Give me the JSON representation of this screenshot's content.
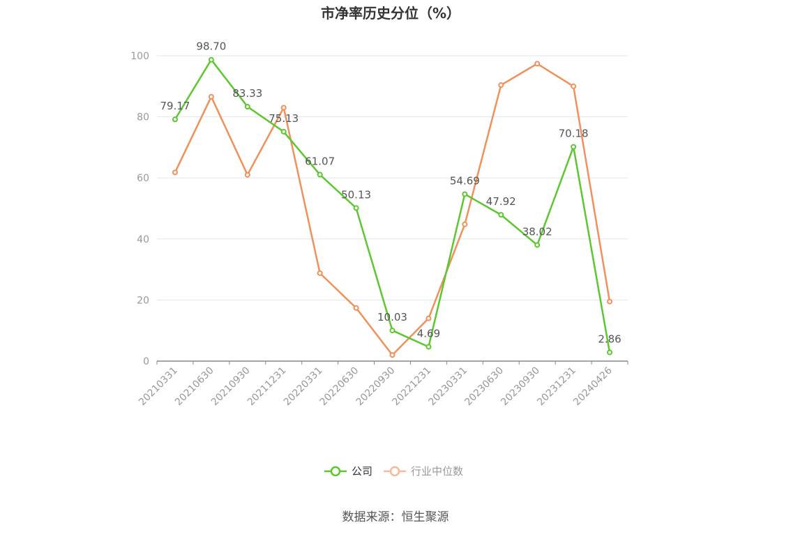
{
  "chart_data": {
    "type": "line",
    "title": "市净率历史分位（%）",
    "categories": [
      "20210331",
      "20210630",
      "20210930",
      "20211231",
      "20220331",
      "20220630",
      "20220930",
      "20221231",
      "20230331",
      "20230630",
      "20230930",
      "20231231",
      "20240426"
    ],
    "ylim": [
      0,
      100
    ],
    "yticks": [
      "0",
      "20",
      "40",
      "60",
      "80",
      "100"
    ],
    "grid": true,
    "legend_position": "bottom-center",
    "series": [
      {
        "name": "公司",
        "color": "#5cc72e",
        "show_labels": true,
        "values": [
          79.17,
          98.7,
          83.33,
          75.13,
          61.07,
          50.13,
          10.03,
          4.69,
          54.69,
          47.92,
          38.02,
          70.18,
          2.86
        ],
        "labels": [
          "79.17",
          "98.70",
          "83.33",
          "75.13",
          "61.07",
          "50.13",
          "10.03",
          "4.69",
          "54.69",
          "47.92",
          "38.02",
          "70.18",
          "2.86"
        ]
      },
      {
        "name": "行业中位数",
        "color": "#f0905a",
        "show_labels": false,
        "values": [
          61.8,
          86.6,
          61.0,
          83.0,
          28.8,
          17.4,
          2.0,
          14.0,
          44.8,
          90.4,
          97.4,
          90.0,
          19.5
        ]
      }
    ]
  },
  "legend": {
    "items": [
      {
        "label": "公司",
        "color": "#5cc72e",
        "text_color": "#333333"
      },
      {
        "label": "行业中位数",
        "color": "#f8b89a",
        "text_color": "#999999"
      }
    ]
  },
  "source": "数据来源：恒生聚源"
}
